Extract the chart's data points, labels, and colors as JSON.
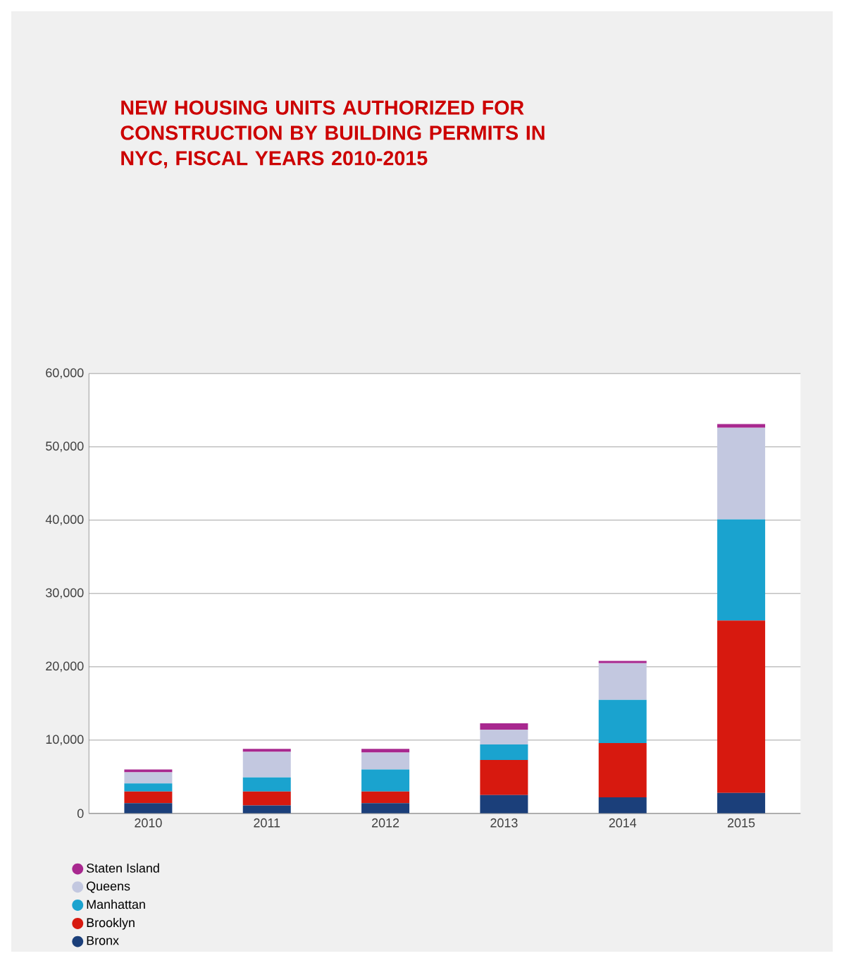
{
  "chart_data": {
    "type": "bar",
    "stacked": true,
    "title": "NEW HOUSING UNITS AUTHORIZED FOR CONSTRUCTION BY BUILDING PERMITS IN NYC, FISCAL YEARS 2010-2015",
    "categories": [
      "2010",
      "2011",
      "2012",
      "2013",
      "2014",
      "2015"
    ],
    "series": [
      {
        "name": "Bronx",
        "color": "#1b3f7a",
        "values": [
          1400,
          1100,
          1400,
          2500,
          2200,
          2800
        ]
      },
      {
        "name": "Brooklyn",
        "color": "#d7190f",
        "values": [
          1600,
          1900,
          1600,
          4800,
          7400,
          23500
        ]
      },
      {
        "name": "Manhattan",
        "color": "#1aa3cf",
        "values": [
          1100,
          1900,
          3000,
          2100,
          5900,
          13800
        ]
      },
      {
        "name": "Queens",
        "color": "#c3c8e0",
        "values": [
          1500,
          3500,
          2300,
          2000,
          5000,
          12500
        ]
      },
      {
        "name": "Staten Island",
        "color": "#a8288f",
        "values": [
          400,
          400,
          500,
          900,
          300,
          500
        ]
      }
    ],
    "ylim": [
      0,
      60000
    ],
    "yticks": [
      {
        "value": 0,
        "label": "0"
      },
      {
        "value": 10000,
        "label": "10,000"
      },
      {
        "value": 20000,
        "label": "20,000"
      },
      {
        "value": 30000,
        "label": "30,000"
      },
      {
        "value": 40000,
        "label": "40,000"
      },
      {
        "value": 50000,
        "label": "50,000"
      },
      {
        "value": 60000,
        "label": "60,000"
      }
    ],
    "grid": "y",
    "legend": "bottom left"
  }
}
